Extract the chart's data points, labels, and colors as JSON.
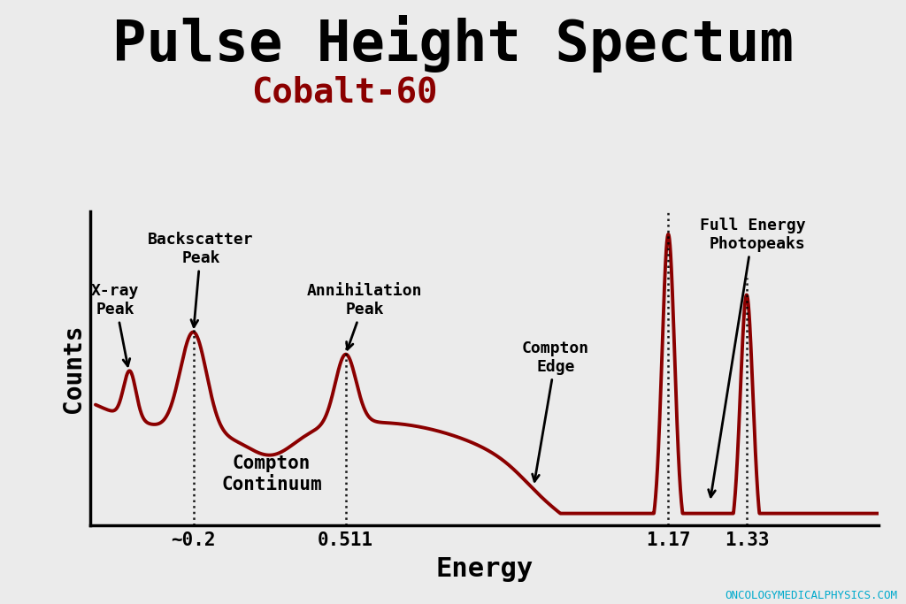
{
  "title": "Pulse Height Spectum",
  "subtitle": "Cobalt-60",
  "xlabel": "Energy",
  "ylabel": "Counts",
  "title_color": "#000000",
  "subtitle_color": "#8B0000",
  "line_color": "#8B0000",
  "background_color": "#EBEBEB",
  "axis_bg_color": "#EBEBEB",
  "watermark": "ONCOLOGYMEDICALPHYSICS.COM",
  "watermark_color": "#00AACC",
  "x_ticks": [
    "~0.2",
    "0.511",
    "1.17",
    "1.33"
  ],
  "x_tick_positions": [
    0.2,
    0.511,
    1.17,
    1.33
  ],
  "dotted_lines": [
    0.2,
    0.511,
    1.17,
    1.33
  ]
}
